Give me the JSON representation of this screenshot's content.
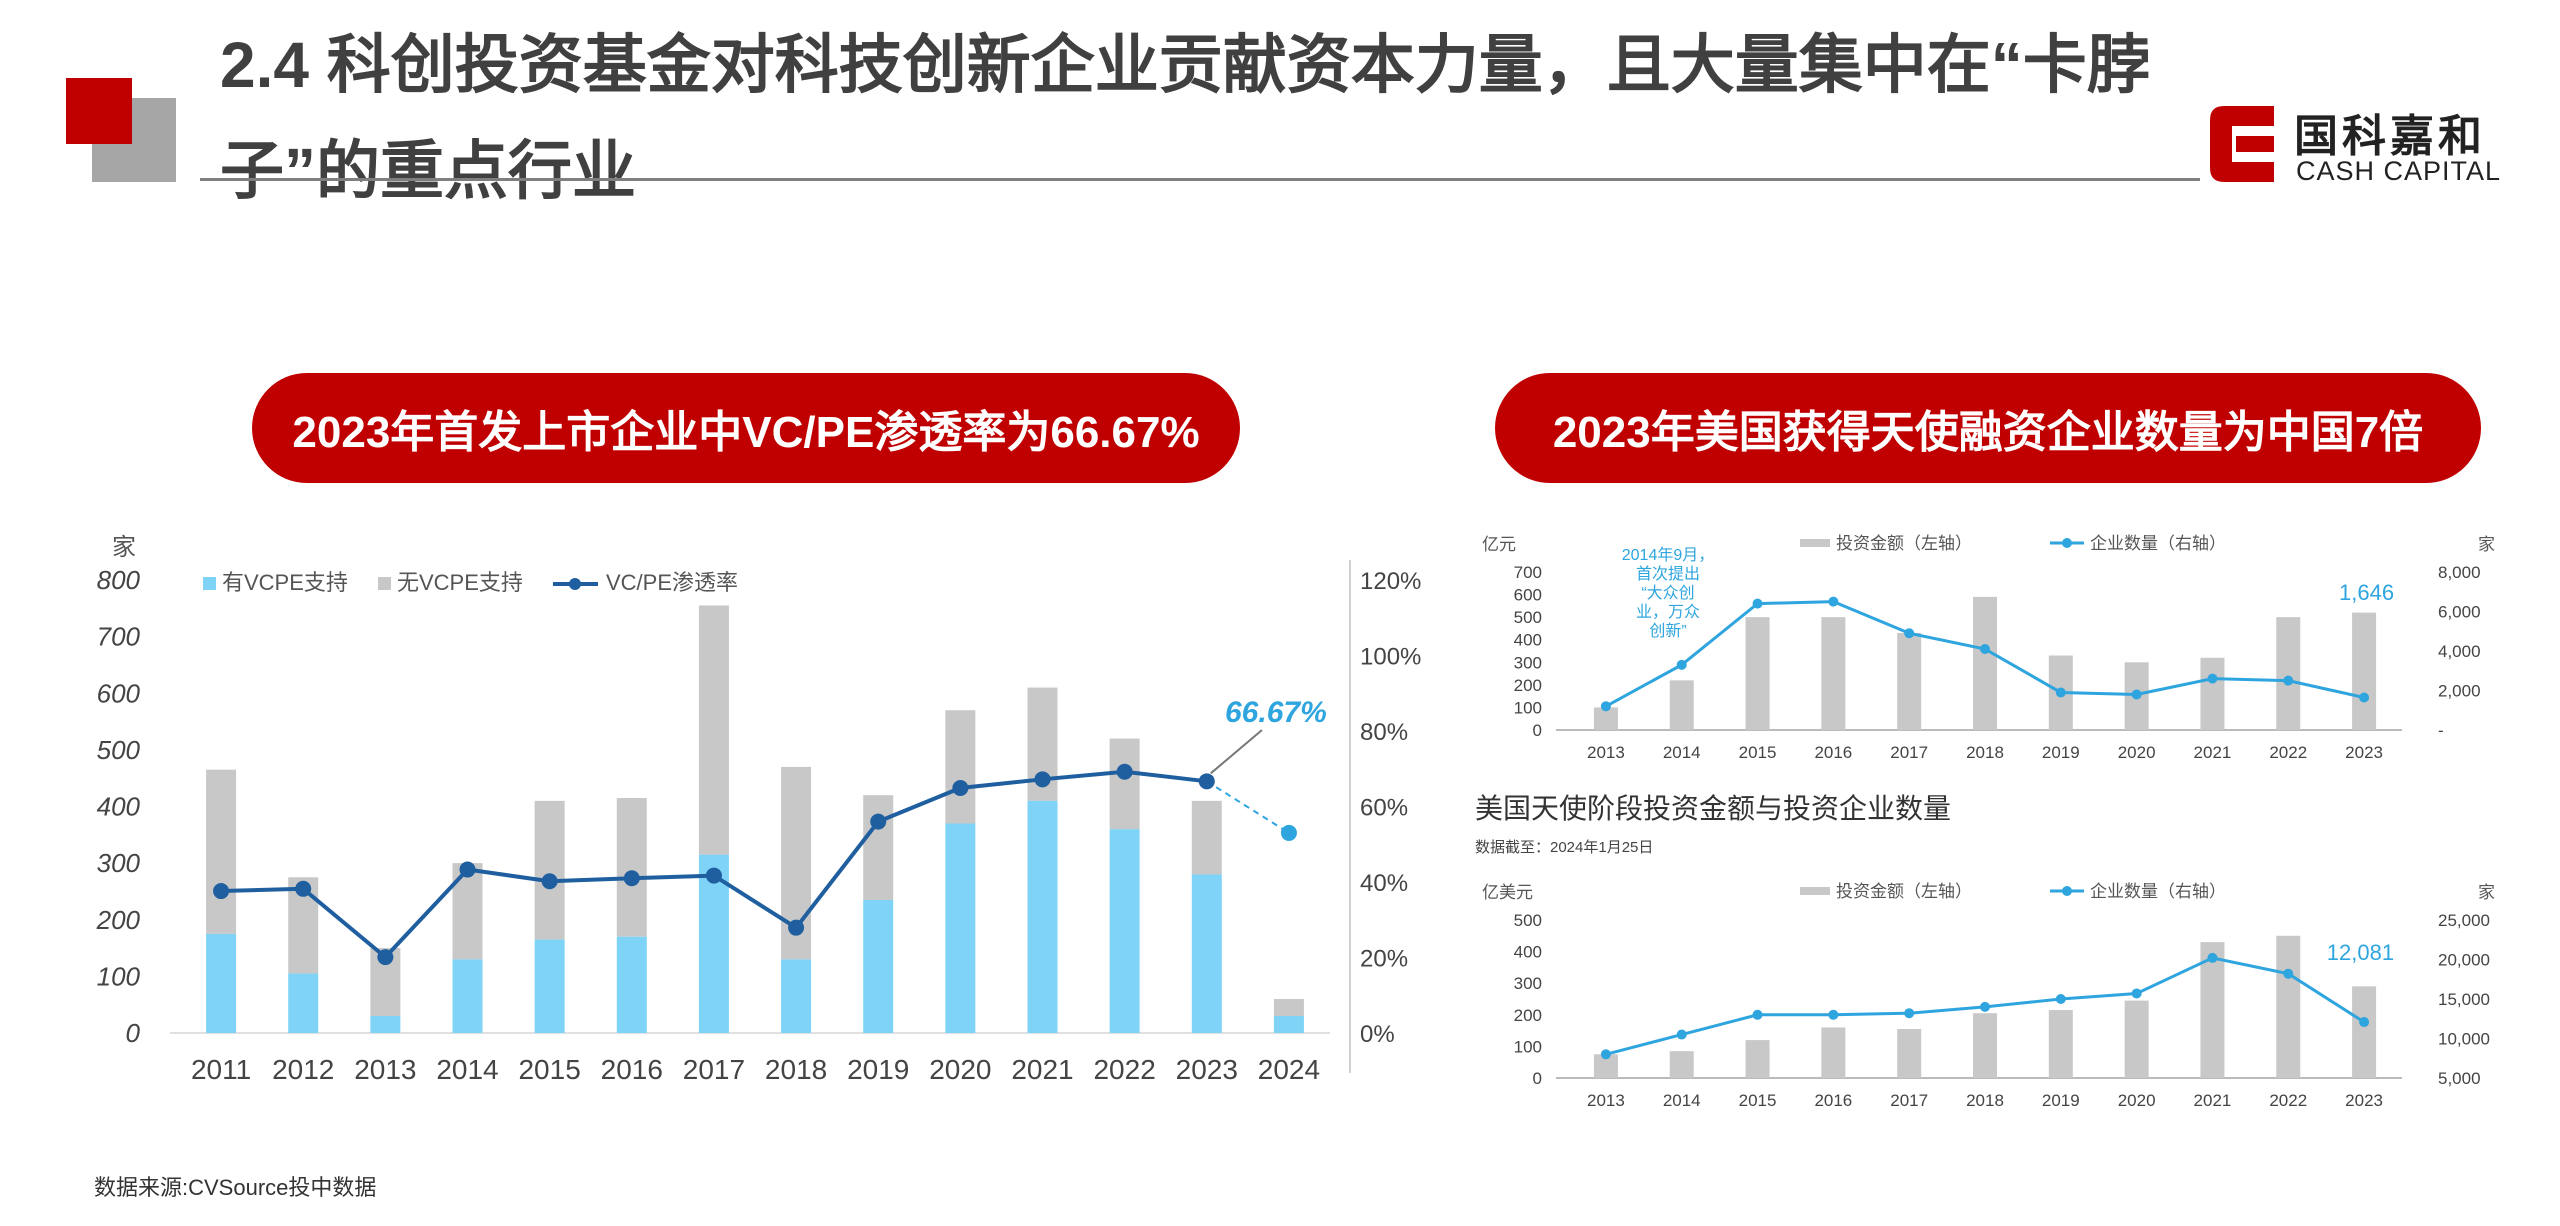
{
  "page": {
    "title": "2.4 科创投资基金对科技创新企业贡献资本力量，且大量集中在“卡脖子”的重点行业",
    "logo_cn": "国科嘉和",
    "logo_en": "CASH CAPITAL",
    "pill_left": "2023年首发上市企业中VC/PE渗透率为66.67%",
    "pill_right": "2023年美国获得天使融资企业数量为中国7倍",
    "source": "数据来源:CVSource投中数据"
  },
  "colors": {
    "brand_red": "#c00000",
    "deco_gray": "#a6a6a6",
    "bar_vc": "#7fd3f7",
    "bar_other": "#c8c8c8",
    "line_dark": "#1f5f9f",
    "line_light": "#2ea5de"
  },
  "chart_data": [
    {
      "type": "bar",
      "stacked": true,
      "categories": [
        "2011",
        "2012",
        "2013",
        "2014",
        "2015",
        "2016",
        "2017",
        "2018",
        "2019",
        "2020",
        "2021",
        "2022",
        "2023",
        "2024"
      ],
      "series": [
        {
          "name": "有VCPE支持",
          "values": [
            175,
            105,
            30,
            130,
            165,
            170,
            315,
            130,
            235,
            370,
            410,
            360,
            280,
            30
          ]
        },
        {
          "name": "无VCPE支持",
          "values": [
            290,
            170,
            120,
            170,
            245,
            245,
            440,
            340,
            185,
            200,
            200,
            160,
            130,
            30
          ]
        },
        {
          "name": "VC/PE渗透率",
          "axis": "right",
          "values": [
            37.6,
            38.2,
            20.1,
            43.3,
            40.2,
            41.0,
            41.7,
            27.9,
            56.0,
            64.9,
            67.2,
            69.2,
            66.67,
            53
          ]
        }
      ],
      "ylabel": "家",
      "ylim": [
        0,
        800
      ],
      "y_ticks": [
        "800",
        "700",
        "600",
        "500",
        "400",
        "300",
        "200",
        "100",
        "0"
      ],
      "y2lim": [
        0,
        120
      ],
      "y2_ticks": [
        "120%",
        "100%",
        "80%",
        "60%",
        "40%",
        "20%",
        "0%"
      ],
      "legend": "top-left",
      "annotation": "66.67%"
    },
    {
      "type": "bar",
      "categories": [
        "2013",
        "2014",
        "2015",
        "2016",
        "2017",
        "2018",
        "2019",
        "2020",
        "2021",
        "2022",
        "2023"
      ],
      "series": [
        {
          "name": "投资金额（左轴）",
          "values": [
            100,
            220,
            500,
            500,
            430,
            590,
            330,
            300,
            320,
            500,
            520
          ]
        },
        {
          "name": "企业数量（右轴）",
          "axis": "right",
          "values": [
            1200,
            3300,
            6400,
            6500,
            4900,
            4100,
            1900,
            1800,
            2600,
            2500,
            1646
          ]
        }
      ],
      "ylabel": "亿元",
      "ylim": [
        0,
        700
      ],
      "y_ticks": [
        "700",
        "600",
        "500",
        "400",
        "300",
        "200",
        "100",
        "0"
      ],
      "y2label": "家",
      "y2lim": [
        0,
        8000
      ],
      "y2_ticks": [
        "8,000",
        "6,000",
        "4,000",
        "2,000",
        "-"
      ],
      "legend": "top-center",
      "annotation": "2014年9月，首次提出“大众创业，万众创新”",
      "end_label": "1,646"
    },
    {
      "type": "bar",
      "title": "美国天使阶段投资金额与投资企业数量",
      "subtitle": "数据截至：2024年1月25日",
      "categories": [
        "2013",
        "2014",
        "2015",
        "2016",
        "2017",
        "2018",
        "2019",
        "2020",
        "2021",
        "2022",
        "2023"
      ],
      "series": [
        {
          "name": "投资金额（左轴）",
          "values": [
            75,
            85,
            120,
            160,
            155,
            205,
            215,
            245,
            430,
            450,
            290
          ]
        },
        {
          "name": "企业数量（右轴）",
          "axis": "right",
          "values": [
            8000,
            10500,
            13000,
            13000,
            13200,
            14000,
            15000,
            15700,
            20200,
            18200,
            12081
          ]
        }
      ],
      "ylabel": "亿美元",
      "ylim": [
        0,
        500
      ],
      "y_ticks": [
        "500",
        "400",
        "300",
        "200",
        "100",
        "0"
      ],
      "y2label": "家",
      "y2lim": [
        5000,
        25000
      ],
      "y2_ticks": [
        "25,000",
        "20,000",
        "15,000",
        "10,000",
        "5,000"
      ],
      "legend": "top-center",
      "end_label": "12,081"
    }
  ]
}
